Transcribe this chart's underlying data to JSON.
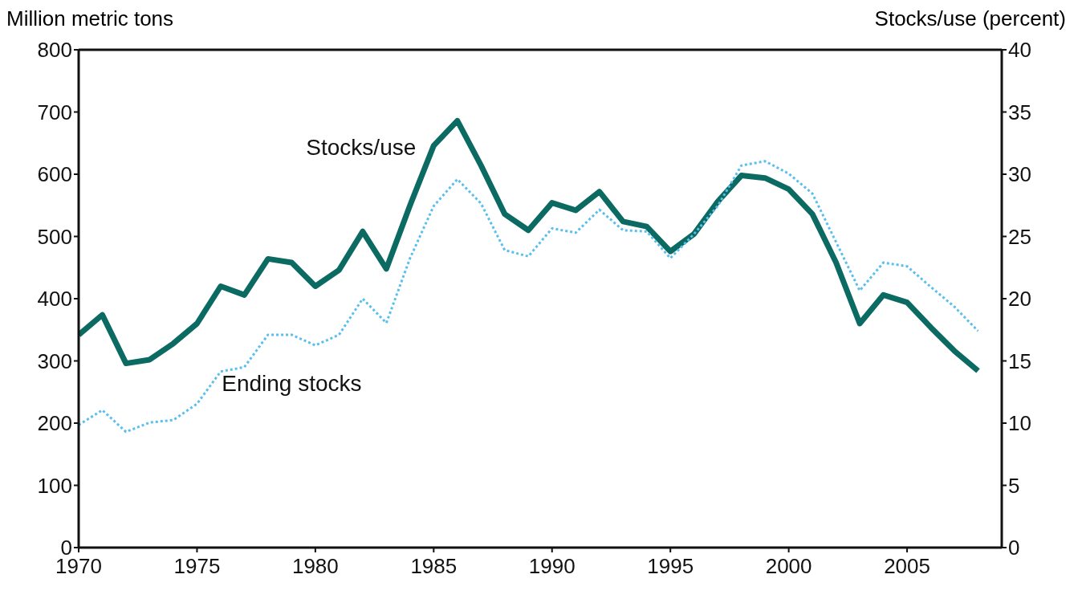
{
  "chart_data": {
    "type": "line",
    "ylabel": "Million metric tons",
    "y2label": "Stocks/use (percent)",
    "x": [
      1970,
      1971,
      1972,
      1973,
      1974,
      1975,
      1976,
      1977,
      1978,
      1979,
      1980,
      1981,
      1982,
      1983,
      1984,
      1985,
      1986,
      1987,
      1988,
      1989,
      1990,
      1991,
      1992,
      1993,
      1994,
      1995,
      1996,
      1997,
      1998,
      1999,
      2000,
      2001,
      2002,
      2003,
      2004,
      2005,
      2006,
      2007,
      2008
    ],
    "series": [
      {
        "name": "Stocks/use",
        "color": "#0b6b63",
        "axis": "y2",
        "line_style": "solid",
        "values": [
          17.1,
          18.7,
          14.8,
          15.1,
          16.4,
          18.0,
          21.0,
          20.3,
          23.2,
          22.9,
          21.0,
          22.3,
          25.4,
          22.4,
          27.5,
          32.3,
          34.3,
          30.7,
          26.8,
          25.5,
          27.7,
          27.1,
          28.6,
          26.2,
          25.8,
          23.8,
          25.2,
          27.8,
          29.9,
          29.7,
          28.8,
          26.8,
          22.9,
          18.0,
          20.3,
          19.7,
          17.7,
          15.8,
          14.2
        ]
      },
      {
        "name": "Ending stocks",
        "color": "#5bbfee",
        "line_style": "dotted",
        "values": [
          197,
          221,
          186,
          201,
          205,
          231,
          283,
          290,
          342,
          342,
          325,
          342,
          400,
          361,
          465,
          549,
          592,
          553,
          478,
          468,
          513,
          506,
          543,
          510,
          508,
          465,
          504,
          549,
          614,
          621,
          601,
          569,
          491,
          413,
          458,
          452,
          419,
          387,
          348
        ]
      }
    ],
    "xlim": [
      1970,
      2009
    ],
    "xticks": [
      1970,
      1975,
      1980,
      1985,
      1990,
      1995,
      2000,
      2005
    ],
    "ylim": [
      0,
      800
    ],
    "yticks": [
      0,
      100,
      200,
      300,
      400,
      500,
      600,
      700,
      800
    ],
    "y2lim": [
      0,
      40
    ],
    "y2ticks": [
      0,
      5,
      10,
      15,
      20,
      25,
      30,
      35,
      40
    ],
    "grid": false,
    "legend": false,
    "marker": "none"
  }
}
